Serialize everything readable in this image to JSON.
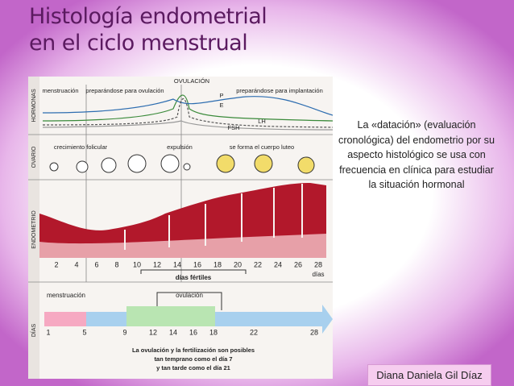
{
  "title": {
    "lines": [
      "Histología endometrial",
      "en el ciclo menstrual"
    ]
  },
  "figure": {
    "section_labels": [
      "HORMONAS",
      "OVARIO",
      "ENDOMETRIO",
      "DÍAS"
    ],
    "hormones": {
      "phase_labels": [
        "menstruación",
        "preparándose para ovulación",
        "OVULACIÓN",
        "preparándose para implantación"
      ],
      "curve_labels": [
        "P",
        "E",
        "LH",
        "FSH"
      ]
    },
    "ovary": {
      "labels": [
        "crecimiento folicular",
        "expulsión",
        "se forma el cuerpo luteo"
      ]
    },
    "endometrium": {
      "day_ticks": [
        "2",
        "4",
        "6",
        "8",
        "10",
        "12",
        "14",
        "16",
        "18",
        "20",
        "22",
        "24",
        "26",
        "28"
      ],
      "unit": "días",
      "fertile_label": "días fértiles"
    },
    "days": {
      "menstruation": "menstruación",
      "ovulation": "ovulación",
      "ticks": [
        "1",
        "5",
        "9",
        "12",
        "14",
        "16",
        "18",
        "22",
        "28"
      ],
      "note": [
        "La ovulación y la fertilización son posibles",
        "tan temprano como el día 7",
        "y tan tarde como el día 21"
      ]
    }
  },
  "description": "La «datación» (evaluación cronológica) del endometrio por su aspecto histológico se usa con frecuencia en clínica para estudiar la situación hormonal",
  "author": "Diana Daniela Gil Díaz"
}
